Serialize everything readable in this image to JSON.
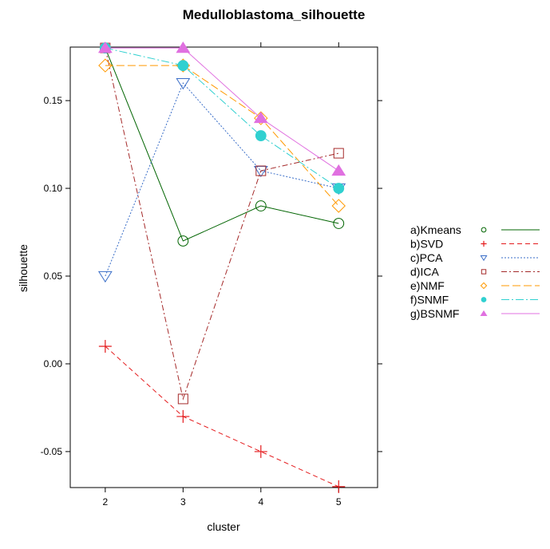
{
  "chart_data": {
    "type": "line",
    "title": "Medulloblastoma_silhouette",
    "xlabel": "cluster",
    "ylabel": "silhouette",
    "x": [
      2,
      3,
      4,
      5
    ],
    "x_ticks": [
      "2",
      "3",
      "4",
      "5"
    ],
    "y_ticks": [
      "-0.05",
      "0.00",
      "0.05",
      "0.10",
      "0.15"
    ],
    "y_tick_values": [
      -0.05,
      0.0,
      0.05,
      0.1,
      0.15
    ],
    "xlim": [
      1.55,
      5.5
    ],
    "ylim": [
      -0.0705,
      0.1805
    ],
    "grid": false,
    "legend_position": "right",
    "series": [
      {
        "name": "a)Kmeans",
        "values": [
          0.18,
          0.07,
          0.09,
          0.08
        ],
        "color": "#006400",
        "marker": "circle-open",
        "dash": ""
      },
      {
        "name": "b)SVD",
        "values": [
          0.01,
          -0.03,
          -0.05,
          -0.07
        ],
        "color": "#e41a1c",
        "marker": "plus",
        "dash": "6,4"
      },
      {
        "name": "c)PCA",
        "values": [
          0.05,
          0.16,
          0.11,
          0.1
        ],
        "color": "#3a6ec8",
        "marker": "triangle-down-open",
        "dash": "2,2"
      },
      {
        "name": "d)ICA",
        "values": [
          0.18,
          -0.02,
          0.11,
          0.12
        ],
        "color": "#a52a2a",
        "marker": "square-open",
        "dash": "7,3,2,3"
      },
      {
        "name": "e)NMF",
        "values": [
          0.17,
          0.17,
          0.14,
          0.09
        ],
        "color": "#ff9900",
        "marker": "diamond-open",
        "dash": "10,4"
      },
      {
        "name": "f)SNMF",
        "values": [
          0.18,
          0.17,
          0.13,
          0.1
        ],
        "color": "#30d0d0",
        "marker": "circle-filled",
        "dash": "10,3,2,3"
      },
      {
        "name": "g)BSNMF",
        "values": [
          0.18,
          0.18,
          0.14,
          0.11
        ],
        "color": "#e070e0",
        "marker": "triangle-up-filled",
        "dash": ""
      }
    ]
  }
}
